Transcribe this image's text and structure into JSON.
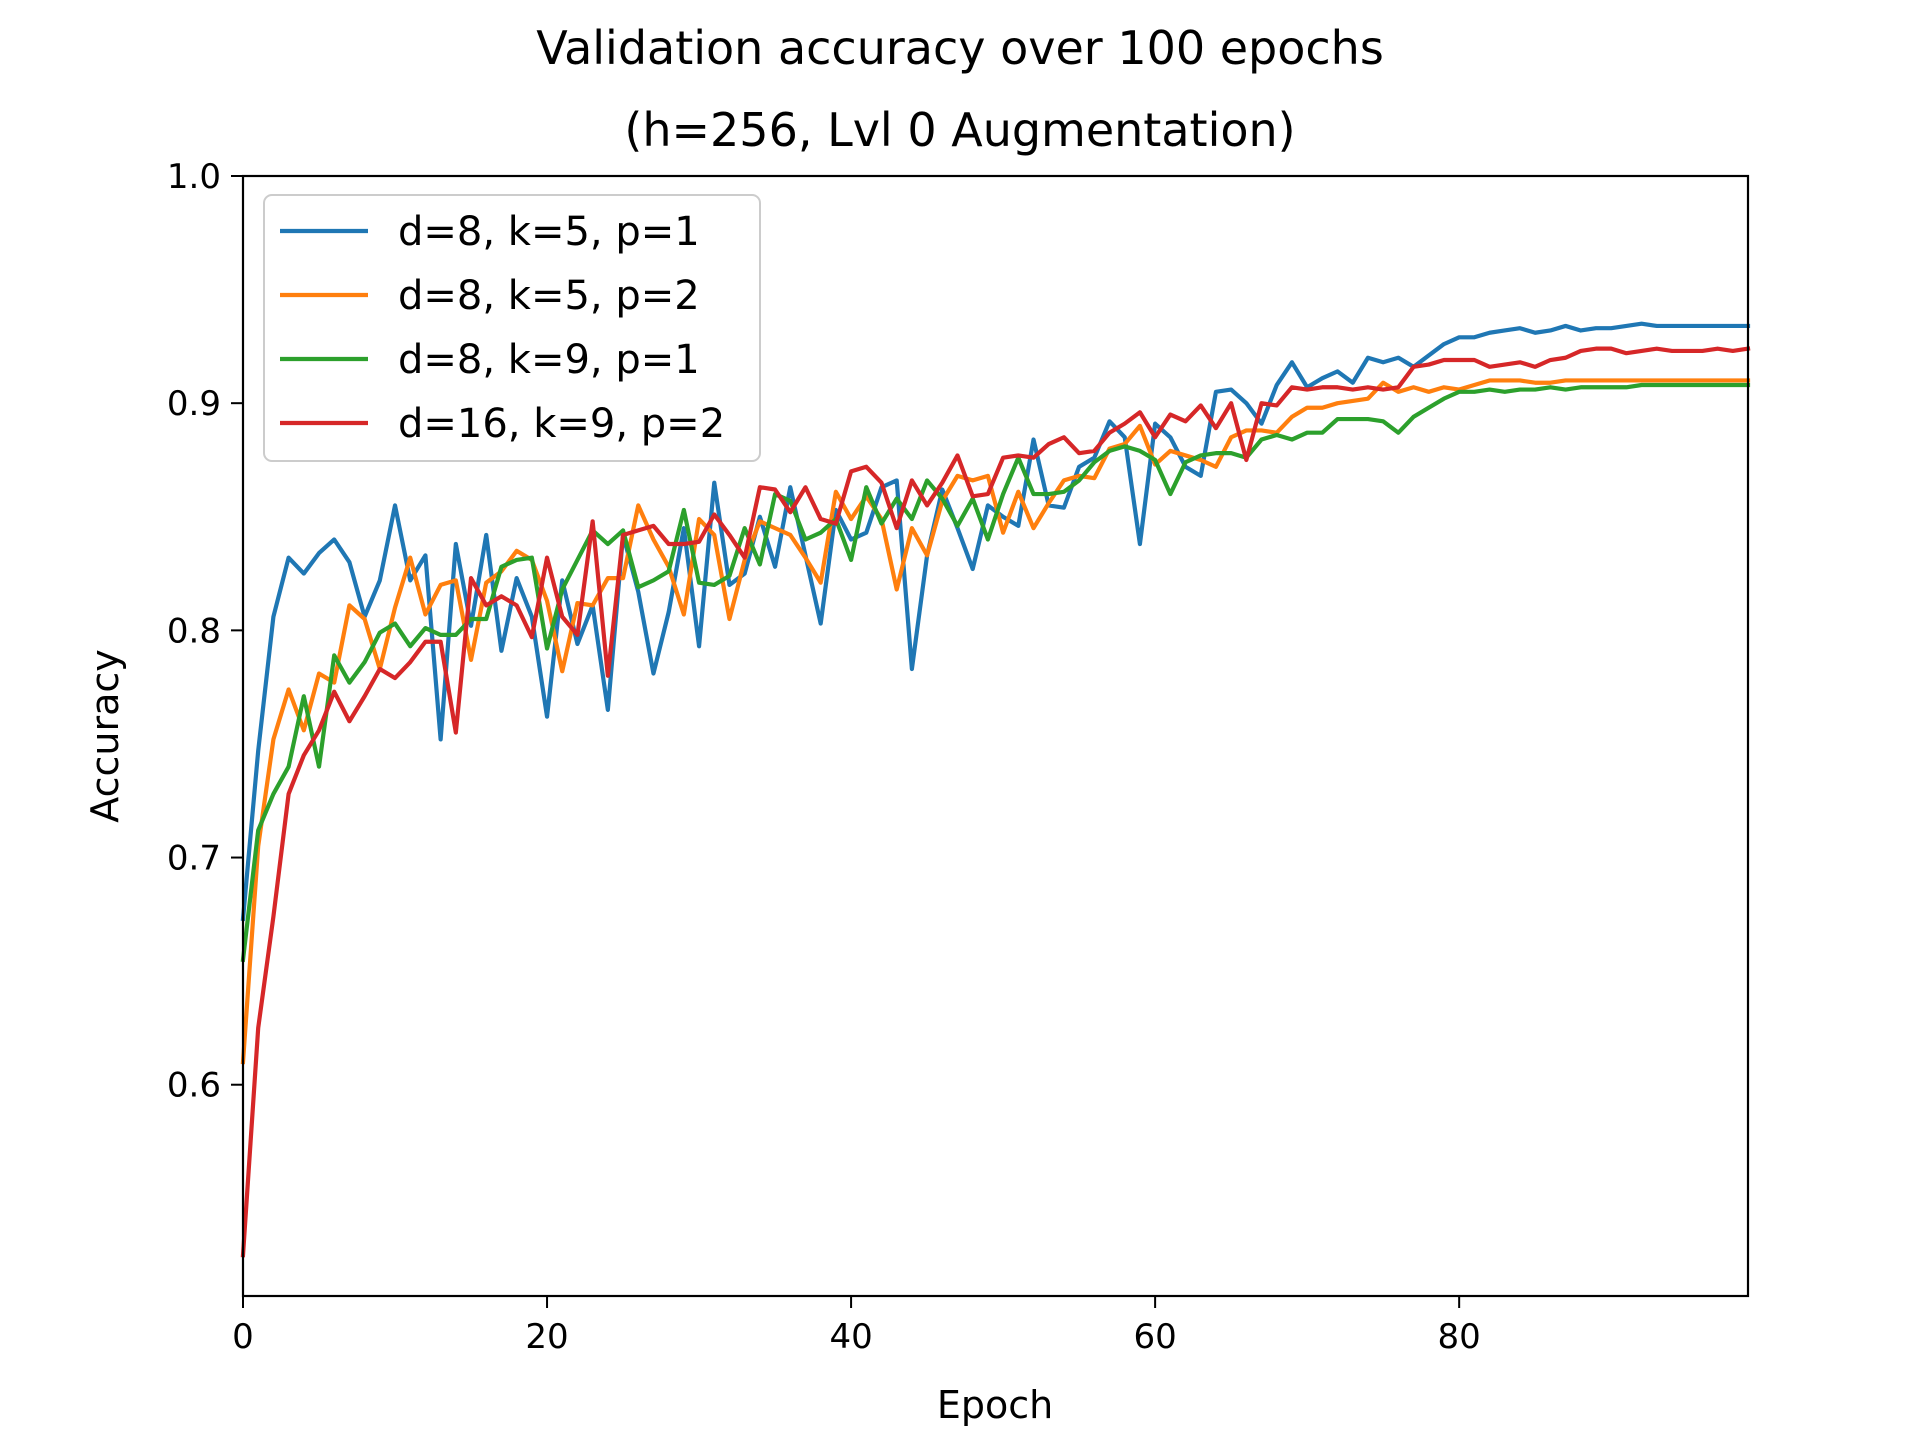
{
  "chart_data": {
    "type": "line",
    "title": "Validation accuracy over 100 epochs",
    "subtitle": "(h=256, Lvl 0 Augmentation)",
    "xlabel": "Epoch",
    "ylabel": "Accuracy",
    "xlim": [
      0,
      99
    ],
    "ylim": [
      0.507,
      1.0
    ],
    "x_ticks": [
      0,
      20,
      40,
      60,
      80
    ],
    "x_tick_labels": [
      "0",
      "20",
      "40",
      "60",
      "80"
    ],
    "y_ticks": [
      0.6,
      0.7,
      0.8,
      0.9,
      1.0
    ],
    "y_tick_labels": [
      "0.6",
      "0.7",
      "0.8",
      "0.9",
      "1.0"
    ],
    "grid": false,
    "legend_position": "top-left",
    "series": [
      {
        "name": "d=8, k=5, p=1",
        "color": "#1f77b4",
        "values": [
          0.673,
          0.747,
          0.806,
          0.832,
          0.825,
          0.834,
          0.84,
          0.83,
          0.806,
          0.822,
          0.855,
          0.822,
          0.833,
          0.752,
          0.838,
          0.802,
          0.842,
          0.791,
          0.823,
          0.806,
          0.762,
          0.822,
          0.794,
          0.811,
          0.765,
          0.842,
          0.817,
          0.781,
          0.808,
          0.845,
          0.793,
          0.865,
          0.82,
          0.825,
          0.85,
          0.828,
          0.863,
          0.833,
          0.803,
          0.853,
          0.84,
          0.843,
          0.863,
          0.866,
          0.783,
          0.833,
          0.862,
          0.845,
          0.827,
          0.855,
          0.85,
          0.846,
          0.884,
          0.855,
          0.854,
          0.872,
          0.876,
          0.892,
          0.885,
          0.838,
          0.891,
          0.885,
          0.872,
          0.868,
          0.905,
          0.906,
          0.9,
          0.891,
          0.908,
          0.918,
          0.907,
          0.911,
          0.914,
          0.909,
          0.92,
          0.918,
          0.92,
          0.916,
          0.921,
          0.926,
          0.929,
          0.929,
          0.931,
          0.932,
          0.933,
          0.931,
          0.932,
          0.934,
          0.932,
          0.933,
          0.933,
          0.934,
          0.935,
          0.934,
          0.934,
          0.934,
          0.934,
          0.934,
          0.934,
          0.934
        ]
      },
      {
        "name": "d=8, k=5, p=2",
        "color": "#ff7f0e",
        "values": [
          0.61,
          0.705,
          0.752,
          0.774,
          0.756,
          0.781,
          0.777,
          0.811,
          0.805,
          0.783,
          0.81,
          0.832,
          0.807,
          0.82,
          0.822,
          0.787,
          0.821,
          0.826,
          0.835,
          0.831,
          0.813,
          0.782,
          0.812,
          0.811,
          0.823,
          0.823,
          0.855,
          0.84,
          0.828,
          0.807,
          0.849,
          0.842,
          0.805,
          0.831,
          0.848,
          0.845,
          0.842,
          0.832,
          0.821,
          0.861,
          0.849,
          0.859,
          0.849,
          0.818,
          0.845,
          0.833,
          0.857,
          0.868,
          0.866,
          0.868,
          0.843,
          0.861,
          0.845,
          0.856,
          0.866,
          0.868,
          0.867,
          0.88,
          0.882,
          0.89,
          0.873,
          0.879,
          0.877,
          0.875,
          0.872,
          0.885,
          0.888,
          0.888,
          0.887,
          0.894,
          0.898,
          0.898,
          0.9,
          0.901,
          0.902,
          0.909,
          0.905,
          0.907,
          0.905,
          0.907,
          0.906,
          0.908,
          0.91,
          0.91,
          0.91,
          0.909,
          0.909,
          0.91,
          0.91,
          0.91,
          0.91,
          0.91,
          0.91,
          0.91,
          0.91,
          0.91,
          0.91,
          0.91,
          0.91,
          0.91
        ]
      },
      {
        "name": "d=8, k=9, p=1",
        "color": "#2ca02c",
        "values": [
          0.655,
          0.712,
          0.728,
          0.74,
          0.771,
          0.74,
          0.789,
          0.777,
          0.786,
          0.799,
          0.803,
          0.793,
          0.801,
          0.798,
          0.798,
          0.805,
          0.805,
          0.828,
          0.831,
          0.832,
          0.792,
          0.818,
          0.831,
          0.844,
          0.838,
          0.844,
          0.819,
          0.822,
          0.826,
          0.853,
          0.821,
          0.82,
          0.824,
          0.845,
          0.829,
          0.86,
          0.857,
          0.84,
          0.843,
          0.849,
          0.831,
          0.863,
          0.847,
          0.858,
          0.849,
          0.866,
          0.858,
          0.846,
          0.858,
          0.84,
          0.86,
          0.876,
          0.86,
          0.86,
          0.861,
          0.866,
          0.874,
          0.879,
          0.881,
          0.879,
          0.875,
          0.86,
          0.874,
          0.877,
          0.878,
          0.878,
          0.876,
          0.884,
          0.886,
          0.884,
          0.887,
          0.887,
          0.893,
          0.893,
          0.893,
          0.892,
          0.887,
          0.894,
          0.898,
          0.902,
          0.905,
          0.905,
          0.906,
          0.905,
          0.906,
          0.906,
          0.907,
          0.906,
          0.907,
          0.907,
          0.907,
          0.907,
          0.908,
          0.908,
          0.908,
          0.908,
          0.908,
          0.908,
          0.908,
          0.908
        ]
      },
      {
        "name": "d=16, k=9, p=2",
        "color": "#d62728",
        "values": [
          0.525,
          0.625,
          0.674,
          0.728,
          0.745,
          0.756,
          0.773,
          0.76,
          0.771,
          0.783,
          0.779,
          0.786,
          0.795,
          0.795,
          0.755,
          0.823,
          0.811,
          0.815,
          0.811,
          0.797,
          0.832,
          0.806,
          0.798,
          0.848,
          0.78,
          0.842,
          0.844,
          0.846,
          0.838,
          0.838,
          0.839,
          0.851,
          0.842,
          0.832,
          0.863,
          0.862,
          0.852,
          0.863,
          0.849,
          0.847,
          0.87,
          0.872,
          0.865,
          0.845,
          0.866,
          0.855,
          0.865,
          0.877,
          0.859,
          0.86,
          0.876,
          0.877,
          0.876,
          0.882,
          0.885,
          0.878,
          0.879,
          0.887,
          0.891,
          0.896,
          0.885,
          0.895,
          0.892,
          0.899,
          0.889,
          0.9,
          0.875,
          0.9,
          0.899,
          0.907,
          0.906,
          0.907,
          0.907,
          0.906,
          0.907,
          0.906,
          0.907,
          0.916,
          0.917,
          0.919,
          0.919,
          0.919,
          0.916,
          0.917,
          0.918,
          0.916,
          0.919,
          0.92,
          0.923,
          0.924,
          0.924,
          0.922,
          0.923,
          0.924,
          0.923,
          0.923,
          0.923,
          0.924,
          0.923,
          0.924
        ]
      }
    ]
  }
}
